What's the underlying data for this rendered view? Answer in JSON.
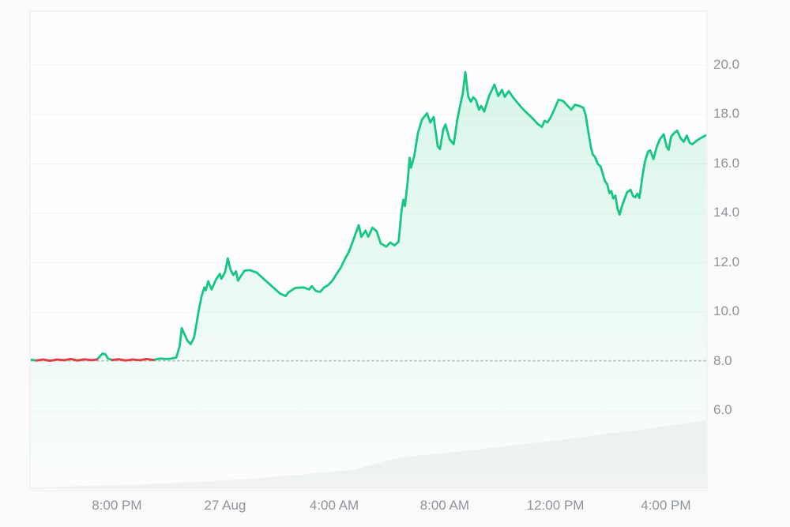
{
  "page": {
    "background": "#fbfbfb",
    "card_background": "#fefefe"
  },
  "colors": {
    "line_up": "#16c784",
    "line_down": "#ea3943",
    "fill_top": "rgba(22,199,132,0.16)",
    "fill_bottom": "rgba(22,199,132,0.01)",
    "gridline": "#f3f4f6",
    "baseline_dots": "#b6bcc3",
    "axis_label": "#8e949b",
    "volume_silhouette": "#f3f3f5"
  },
  "chart_data": {
    "type": "line",
    "title": "",
    "subtitle": "",
    "legend": [],
    "x_axis": {
      "unit": "time",
      "range_hours": [
        0,
        24.51
      ],
      "grid": false,
      "ticks": [
        {
          "t": 3.15,
          "label": "8:00 PM"
        },
        {
          "t": 7.08,
          "label": "27 Aug"
        },
        {
          "t": 11.04,
          "label": "4:00 AM"
        },
        {
          "t": 15.05,
          "label": "8:00 AM"
        },
        {
          "t": 19.07,
          "label": "12:00 PM"
        },
        {
          "t": 23.08,
          "label": "4:00 PM"
        }
      ]
    },
    "y_axis": {
      "side": "right",
      "range": [
        5.55,
        20.45
      ],
      "grid": true,
      "ticks": [
        {
          "value": 20.0,
          "label": "20.0"
        },
        {
          "value": 18.0,
          "label": "18.0"
        },
        {
          "value": 16.0,
          "label": "16.0"
        },
        {
          "value": 14.0,
          "label": "14.0"
        },
        {
          "value": 12.0,
          "label": "12.0"
        },
        {
          "value": 10.0,
          "label": "10.0"
        },
        {
          "value": 8.0,
          "label": "8.0"
        },
        {
          "value": 6.0,
          "label": "6.0"
        }
      ]
    },
    "baseline": {
      "value": 8.03,
      "style": "dotted"
    },
    "down_segments_hours": [
      [
        0.05,
        2.45
      ],
      [
        2.9,
        4.55
      ]
    ],
    "series": [
      {
        "name": "price",
        "points": [
          [
            0,
            8.07
          ],
          [
            0.2,
            8.04
          ],
          [
            0.45,
            8.08
          ],
          [
            0.7,
            8.03
          ],
          [
            0.95,
            8.08
          ],
          [
            1.2,
            8.05
          ],
          [
            1.45,
            8.1
          ],
          [
            1.7,
            8.04
          ],
          [
            1.95,
            8.09
          ],
          [
            2.2,
            8.05
          ],
          [
            2.4,
            8.08
          ],
          [
            2.5,
            8.2
          ],
          [
            2.6,
            8.32
          ],
          [
            2.7,
            8.3
          ],
          [
            2.8,
            8.12
          ],
          [
            2.95,
            8.06
          ],
          [
            3.2,
            8.09
          ],
          [
            3.45,
            8.04
          ],
          [
            3.7,
            8.08
          ],
          [
            3.95,
            8.05
          ],
          [
            4.2,
            8.1
          ],
          [
            4.45,
            8.06
          ],
          [
            4.7,
            8.12
          ],
          [
            4.95,
            8.1
          ],
          [
            5.1,
            8.12
          ],
          [
            5.28,
            8.16
          ],
          [
            5.4,
            8.6
          ],
          [
            5.48,
            9.35
          ],
          [
            5.56,
            9.15
          ],
          [
            5.68,
            8.85
          ],
          [
            5.8,
            8.7
          ],
          [
            5.92,
            8.95
          ],
          [
            6.0,
            9.45
          ],
          [
            6.1,
            10.1
          ],
          [
            6.2,
            10.65
          ],
          [
            6.3,
            11.0
          ],
          [
            6.35,
            10.88
          ],
          [
            6.44,
            11.25
          ],
          [
            6.56,
            10.92
          ],
          [
            6.72,
            11.32
          ],
          [
            6.86,
            11.55
          ],
          [
            6.92,
            11.35
          ],
          [
            7.05,
            11.62
          ],
          [
            7.15,
            12.18
          ],
          [
            7.25,
            11.72
          ],
          [
            7.35,
            11.5
          ],
          [
            7.45,
            11.65
          ],
          [
            7.52,
            11.27
          ],
          [
            7.62,
            11.45
          ],
          [
            7.76,
            11.68
          ],
          [
            7.95,
            11.7
          ],
          [
            8.2,
            11.6
          ],
          [
            8.5,
            11.3
          ],
          [
            8.8,
            11.0
          ],
          [
            9.05,
            10.75
          ],
          [
            9.25,
            10.65
          ],
          [
            9.35,
            10.8
          ],
          [
            9.6,
            10.98
          ],
          [
            9.9,
            11.0
          ],
          [
            10.1,
            10.92
          ],
          [
            10.2,
            11.05
          ],
          [
            10.35,
            10.85
          ],
          [
            10.5,
            10.82
          ],
          [
            10.65,
            11.0
          ],
          [
            10.8,
            11.1
          ],
          [
            10.95,
            11.28
          ],
          [
            11.1,
            11.55
          ],
          [
            11.25,
            11.8
          ],
          [
            11.4,
            12.15
          ],
          [
            11.55,
            12.45
          ],
          [
            11.7,
            12.9
          ],
          [
            11.9,
            13.52
          ],
          [
            12.0,
            13.05
          ],
          [
            12.15,
            13.3
          ],
          [
            12.25,
            13.05
          ],
          [
            12.4,
            13.42
          ],
          [
            12.55,
            13.28
          ],
          [
            12.7,
            12.78
          ],
          [
            12.9,
            12.65
          ],
          [
            13.05,
            12.82
          ],
          [
            13.2,
            12.7
          ],
          [
            13.35,
            12.85
          ],
          [
            13.45,
            14.05
          ],
          [
            13.52,
            14.55
          ],
          [
            13.58,
            14.3
          ],
          [
            13.68,
            15.3
          ],
          [
            13.75,
            16.25
          ],
          [
            13.8,
            15.85
          ],
          [
            13.92,
            16.35
          ],
          [
            14.05,
            17.25
          ],
          [
            14.2,
            17.8
          ],
          [
            14.38,
            18.05
          ],
          [
            14.5,
            17.68
          ],
          [
            14.62,
            17.9
          ],
          [
            14.77,
            16.72
          ],
          [
            14.85,
            16.6
          ],
          [
            14.97,
            17.4
          ],
          [
            15.05,
            17.6
          ],
          [
            15.2,
            17.0
          ],
          [
            15.35,
            16.8
          ],
          [
            15.48,
            17.8
          ],
          [
            15.6,
            18.45
          ],
          [
            15.68,
            18.85
          ],
          [
            15.77,
            19.72
          ],
          [
            15.88,
            18.72
          ],
          [
            15.97,
            18.52
          ],
          [
            16.06,
            18.7
          ],
          [
            16.15,
            18.6
          ],
          [
            16.27,
            18.2
          ],
          [
            16.35,
            18.35
          ],
          [
            16.46,
            18.12
          ],
          [
            16.63,
            18.75
          ],
          [
            16.83,
            19.22
          ],
          [
            16.97,
            18.75
          ],
          [
            17.1,
            19.0
          ],
          [
            17.2,
            18.72
          ],
          [
            17.35,
            18.95
          ],
          [
            17.5,
            18.7
          ],
          [
            17.65,
            18.5
          ],
          [
            17.8,
            18.3
          ],
          [
            17.95,
            18.12
          ],
          [
            18.1,
            17.97
          ],
          [
            18.25,
            17.8
          ],
          [
            18.4,
            17.62
          ],
          [
            18.55,
            17.5
          ],
          [
            18.65,
            17.75
          ],
          [
            18.75,
            17.68
          ],
          [
            18.85,
            17.85
          ],
          [
            19.0,
            18.2
          ],
          [
            19.15,
            18.6
          ],
          [
            19.32,
            18.55
          ],
          [
            19.62,
            18.2
          ],
          [
            19.75,
            18.4
          ],
          [
            19.92,
            18.35
          ],
          [
            20.05,
            18.28
          ],
          [
            20.14,
            17.98
          ],
          [
            20.2,
            17.55
          ],
          [
            20.27,
            17.08
          ],
          [
            20.33,
            16.68
          ],
          [
            20.4,
            16.38
          ],
          [
            20.48,
            16.28
          ],
          [
            20.58,
            16.0
          ],
          [
            20.68,
            15.9
          ],
          [
            20.84,
            15.3
          ],
          [
            20.92,
            15.18
          ],
          [
            21.0,
            14.82
          ],
          [
            21.07,
            14.9
          ],
          [
            21.14,
            14.6
          ],
          [
            21.22,
            14.72
          ],
          [
            21.3,
            14.18
          ],
          [
            21.37,
            13.95
          ],
          [
            21.46,
            14.3
          ],
          [
            21.55,
            14.58
          ],
          [
            21.64,
            14.85
          ],
          [
            21.77,
            14.95
          ],
          [
            21.86,
            14.7
          ],
          [
            21.94,
            14.65
          ],
          [
            22.02,
            14.8
          ],
          [
            22.09,
            14.62
          ],
          [
            22.2,
            15.5
          ],
          [
            22.29,
            16.1
          ],
          [
            22.4,
            16.5
          ],
          [
            22.48,
            16.55
          ],
          [
            22.6,
            16.2
          ],
          [
            22.72,
            16.7
          ],
          [
            22.83,
            17.0
          ],
          [
            22.97,
            17.2
          ],
          [
            23.08,
            16.7
          ],
          [
            23.15,
            16.57
          ],
          [
            23.24,
            17.1
          ],
          [
            23.35,
            17.25
          ],
          [
            23.46,
            17.35
          ],
          [
            23.58,
            17.05
          ],
          [
            23.7,
            16.9
          ],
          [
            23.81,
            17.15
          ],
          [
            23.92,
            16.85
          ],
          [
            24.01,
            16.8
          ],
          [
            24.12,
            16.9
          ],
          [
            24.24,
            17.0
          ],
          [
            24.36,
            17.08
          ],
          [
            24.51,
            17.16
          ]
        ]
      }
    ],
    "volume_profile": {
      "unit": "relative_px",
      "points": [
        [
          0,
          2
        ],
        [
          2,
          4
        ],
        [
          4,
          6
        ],
        [
          6,
          9
        ],
        [
          8,
          13
        ],
        [
          10,
          19
        ],
        [
          11,
          22
        ],
        [
          11.8,
          25
        ],
        [
          12.3,
          30
        ],
        [
          12.8,
          35
        ],
        [
          13.3,
          39
        ],
        [
          13.9,
          42
        ],
        [
          14.9,
          45
        ],
        [
          15.9,
          49
        ],
        [
          16.9,
          53
        ],
        [
          17.9,
          57
        ],
        [
          18.9,
          61
        ],
        [
          19.9,
          65
        ],
        [
          20.9,
          70
        ],
        [
          21.9,
          74
        ],
        [
          22.9,
          79
        ],
        [
          23.7,
          83
        ],
        [
          24.51,
          87
        ]
      ]
    }
  }
}
